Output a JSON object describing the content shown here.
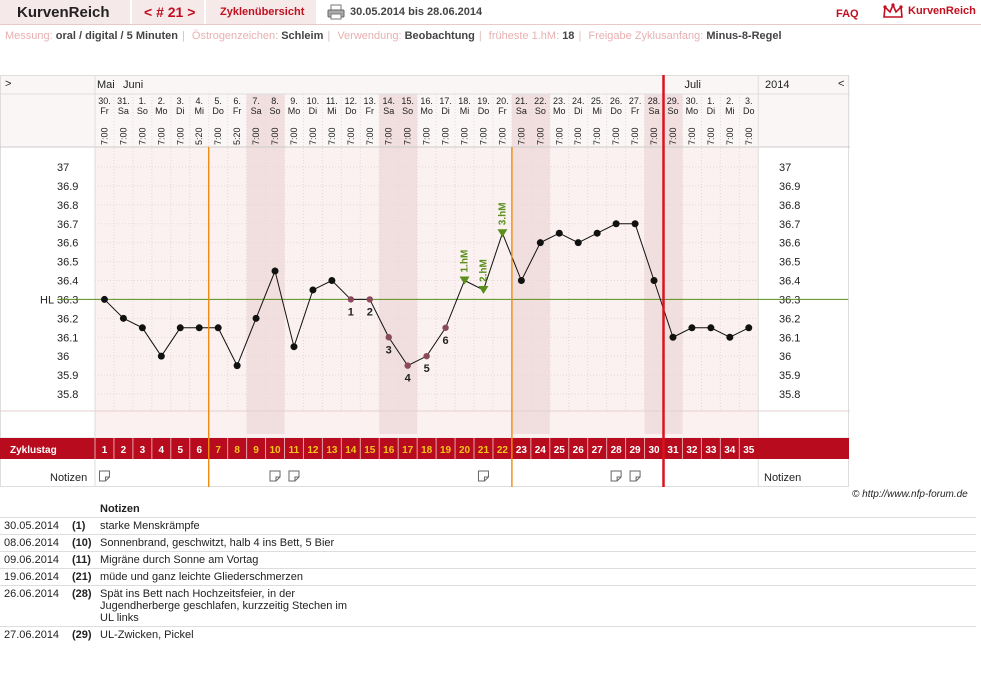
{
  "header": {
    "app_title": "KurvenReich",
    "cycle_nav": "< # 21 >",
    "overview_tab": "Zyklenübersicht",
    "date_range": "30.05.2014 bis 28.06.2014",
    "faq": "FAQ",
    "logo_text": "KurvenReich",
    "print_icon": "printer-icon",
    "logo_icon": "crown-icon"
  },
  "settings": {
    "messung_label": "Messung:",
    "messung_value": "oral / digital / 5 Minuten",
    "oestrogen_label": "Östrogenzeichen:",
    "oestrogen_value": "Schleim",
    "verwendung_label": "Verwendung:",
    "verwendung_value": "Beobachtung",
    "hm_label": "früheste 1.hM:",
    "hm_value": "18",
    "freigabe_label": "Freigabe Zyklusanfang:",
    "freigabe_value": "Minus-8-Regel"
  },
  "chart_data": {
    "type": "line",
    "title": "",
    "months": [
      "Mai",
      "Juni",
      "Juli"
    ],
    "year": "2014",
    "nav_left": ">",
    "nav_right": "<",
    "days": [
      {
        "date": "30.",
        "dow": "Fr",
        "time": "7:00",
        "cycle": "1",
        "temp": 36.3,
        "shade": false
      },
      {
        "date": "31.",
        "dow": "Sa",
        "time": "7:00",
        "cycle": "2",
        "temp": 36.2,
        "shade": false
      },
      {
        "date": "1.",
        "dow": "So",
        "time": "7:00",
        "cycle": "3",
        "temp": 36.15,
        "shade": false
      },
      {
        "date": "2.",
        "dow": "Mo",
        "time": "7:00",
        "cycle": "4",
        "temp": 36.0,
        "shade": false
      },
      {
        "date": "3.",
        "dow": "Di",
        "time": "7:00",
        "cycle": "5",
        "temp": 36.15,
        "shade": false
      },
      {
        "date": "4.",
        "dow": "Mi",
        "time": "5:20",
        "cycle": "6",
        "temp": 36.15,
        "shade": false
      },
      {
        "date": "5.",
        "dow": "Do",
        "time": "7:00",
        "cycle": "7",
        "temp": 36.15,
        "shade": false
      },
      {
        "date": "6.",
        "dow": "Fr",
        "time": "5:20",
        "cycle": "8",
        "temp": 35.95,
        "shade": false
      },
      {
        "date": "7.",
        "dow": "Sa",
        "time": "7:00",
        "cycle": "9",
        "temp": 36.2,
        "shade": true
      },
      {
        "date": "8.",
        "dow": "So",
        "time": "7:00",
        "cycle": "10",
        "temp": 36.45,
        "shade": true
      },
      {
        "date": "9.",
        "dow": "Mo",
        "time": "7:00",
        "cycle": "11",
        "temp": 36.05,
        "shade": false
      },
      {
        "date": "10.",
        "dow": "Di",
        "time": "7:00",
        "cycle": "12",
        "temp": 36.35,
        "shade": false
      },
      {
        "date": "11.",
        "dow": "Mi",
        "time": "7:00",
        "cycle": "13",
        "temp": 36.4,
        "shade": false
      },
      {
        "date": "12.",
        "dow": "Do",
        "time": "7:00",
        "cycle": "14",
        "temp": 36.3,
        "shade": false
      },
      {
        "date": "13.",
        "dow": "Fr",
        "time": "7:00",
        "cycle": "15",
        "temp": 36.3,
        "shade": false
      },
      {
        "date": "14.",
        "dow": "Sa",
        "time": "7:00",
        "cycle": "16",
        "temp": 36.1,
        "shade": true
      },
      {
        "date": "15.",
        "dow": "So",
        "time": "7:00",
        "cycle": "17",
        "temp": 35.95,
        "shade": true
      },
      {
        "date": "16.",
        "dow": "Mo",
        "time": "7:00",
        "cycle": "18",
        "temp": 36.0,
        "shade": false
      },
      {
        "date": "17.",
        "dow": "Di",
        "time": "7:00",
        "cycle": "19",
        "temp": 36.15,
        "shade": false
      },
      {
        "date": "18.",
        "dow": "Mi",
        "time": "7:00",
        "cycle": "20",
        "temp": 36.4,
        "shade": false
      },
      {
        "date": "19.",
        "dow": "Do",
        "time": "7:00",
        "cycle": "21",
        "temp": 36.35,
        "shade": false
      },
      {
        "date": "20.",
        "dow": "Fr",
        "time": "7:00",
        "cycle": "22",
        "temp": 36.65,
        "shade": false
      },
      {
        "date": "21.",
        "dow": "Sa",
        "time": "7:00",
        "cycle": "23",
        "temp": 36.4,
        "shade": true
      },
      {
        "date": "22.",
        "dow": "So",
        "time": "7:00",
        "cycle": "24",
        "temp": 36.6,
        "shade": true
      },
      {
        "date": "23.",
        "dow": "Mo",
        "time": "7:00",
        "cycle": "25",
        "temp": 36.65,
        "shade": false
      },
      {
        "date": "24.",
        "dow": "Di",
        "time": "7:00",
        "cycle": "26",
        "temp": 36.6,
        "shade": false
      },
      {
        "date": "25.",
        "dow": "Mi",
        "time": "7:00",
        "cycle": "27",
        "temp": 36.65,
        "shade": false
      },
      {
        "date": "26.",
        "dow": "Do",
        "time": "7:00",
        "cycle": "28",
        "temp": 36.7,
        "shade": false
      },
      {
        "date": "27.",
        "dow": "Fr",
        "time": "7:00",
        "cycle": "29",
        "temp": 36.7,
        "shade": false
      },
      {
        "date": "28.",
        "dow": "Sa",
        "time": "7:00",
        "cycle": "30",
        "temp": 36.4,
        "shade": true
      },
      {
        "date": "29.",
        "dow": "So",
        "time": "7:00",
        "cycle": "31",
        "temp": 36.1,
        "shade": true
      },
      {
        "date": "30.",
        "dow": "Mo",
        "time": "7:00",
        "cycle": "32",
        "temp": 36.15,
        "shade": false
      },
      {
        "date": "1.",
        "dow": "Di",
        "time": "7:00",
        "cycle": "33",
        "temp": 36.15,
        "shade": false
      },
      {
        "date": "2.",
        "dow": "Mi",
        "time": "7:00",
        "cycle": "34",
        "temp": 36.1,
        "shade": false
      },
      {
        "date": "3.",
        "dow": "Do",
        "time": "7:00",
        "cycle": "35",
        "temp": 36.15,
        "shade": false
      }
    ],
    "y_ticks": [
      "37",
      "36.9",
      "36.8",
      "36.7",
      "36.6",
      "36.5",
      "36.4",
      "36.3",
      "36.2",
      "36.1",
      "36",
      "35.9",
      "35.8"
    ],
    "ylim": [
      35.7,
      37.05
    ],
    "hl_label": "HL",
    "hl_value": 36.3,
    "lower_point_labels": [
      {
        "cycle": "14",
        "label": "1"
      },
      {
        "cycle": "15",
        "label": "2"
      },
      {
        "cycle": "16",
        "label": "3"
      },
      {
        "cycle": "17",
        "label": "4"
      },
      {
        "cycle": "18",
        "label": "5"
      },
      {
        "cycle": "19",
        "label": "6"
      }
    ],
    "high_markers": [
      {
        "cycle": "20",
        "label": "1.hM"
      },
      {
        "cycle": "21",
        "label": "2.hM"
      },
      {
        "cycle": "22",
        "label": "3.hM"
      }
    ],
    "orange_lines_after_cycle": [
      "6",
      "22"
    ],
    "red_line_after_cycle": "30",
    "highlight_cycles": [
      "7",
      "8",
      "9",
      "10",
      "11",
      "12",
      "13",
      "14",
      "15",
      "16",
      "17",
      "18",
      "19",
      "20",
      "21",
      "22"
    ],
    "zyklustag_label": "Zyklustag",
    "notizen_label": "Notizen",
    "note_icon_cycles": [
      "1",
      "10",
      "11",
      "21",
      "28",
      "29"
    ],
    "colors": {
      "red": "#b80b1e",
      "orange": "#f08a10",
      "green": "#5a8f1c",
      "mauve": "#8a4a5a",
      "shade": "#f8ecec",
      "cycle_bar": "#b80b1e",
      "highlight_num": "#f5c518"
    }
  },
  "footer": {
    "copyright": "© http://www.nfp-forum.de",
    "notes_header": "Notizen",
    "notes": [
      {
        "date": "30.05.2014",
        "cycle": "(1)",
        "text": "starke Menskrämpfe"
      },
      {
        "date": "08.06.2014",
        "cycle": "(10)",
        "text": "Sonnenbrand, geschwitzt, halb 4 ins Bett, 5 Bier"
      },
      {
        "date": "09.06.2014",
        "cycle": "(11)",
        "text": "Migräne durch Sonne am Vortag"
      },
      {
        "date": "19.06.2014",
        "cycle": "(21)",
        "text": "müde und ganz leichte Gliederschmerzen"
      },
      {
        "date": "26.06.2014",
        "cycle": "(28)",
        "text": "Spät ins Bett nach Hochzeitsfeier, in der Jugendherberge geschlafen, kurzzeitig Stechen im UL links"
      },
      {
        "date": "27.06.2014",
        "cycle": "(29)",
        "text": "UL-Zwicken, Pickel"
      }
    ]
  }
}
